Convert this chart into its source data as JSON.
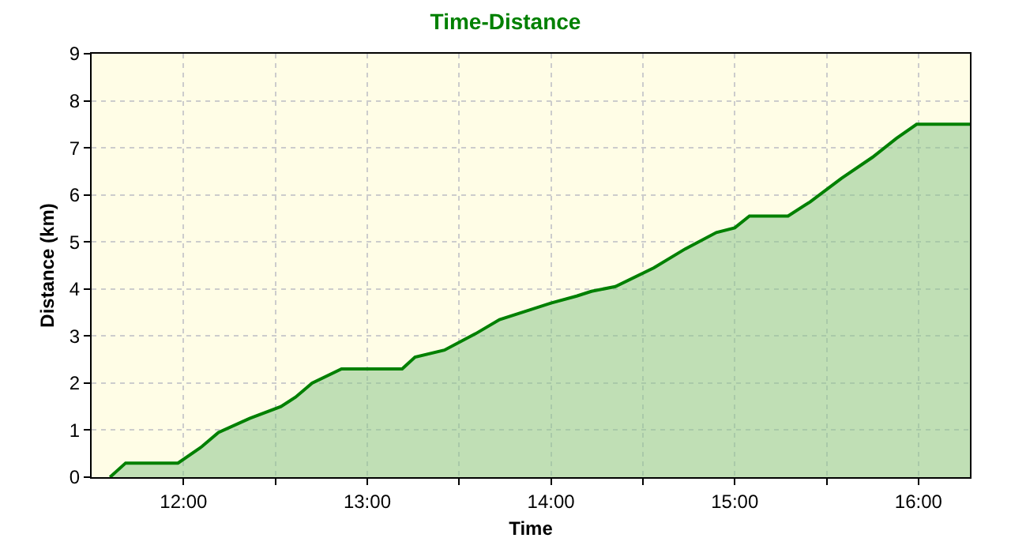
{
  "chart_data": {
    "type": "area",
    "title": "Time-Distance",
    "xlabel": "Time",
    "ylabel": "Distance (km)",
    "x": [
      11.6,
      11.685,
      11.97,
      12.1,
      12.19,
      12.36,
      12.53,
      12.61,
      12.7,
      12.86,
      13.19,
      13.26,
      13.42,
      13.59,
      13.72,
      13.88,
      14.0,
      14.14,
      14.22,
      14.35,
      14.56,
      14.73,
      14.9,
      15.0,
      15.08,
      15.29,
      15.41,
      15.58,
      15.75,
      15.88,
      15.99,
      16.28
    ],
    "series": [
      {
        "color": "#008000",
        "values": [
          0,
          0.3,
          0.3,
          0.65,
          0.95,
          1.25,
          1.5,
          1.7,
          2.0,
          2.3,
          2.3,
          2.55,
          2.7,
          3.05,
          3.35,
          3.55,
          3.7,
          3.85,
          3.95,
          4.05,
          4.45,
          4.85,
          5.2,
          5.3,
          5.55,
          5.55,
          5.85,
          6.35,
          6.8,
          7.2,
          7.5,
          7.5
        ]
      }
    ],
    "xlim": [
      11.5,
      16.28
    ],
    "xticks": [
      {
        "value": 12,
        "label": "12:00"
      },
      {
        "value": 12.5,
        "label": null
      },
      {
        "value": 13,
        "label": "13:00"
      },
      {
        "value": 13.5,
        "label": null
      },
      {
        "value": 14,
        "label": "14:00"
      },
      {
        "value": 14.5,
        "label": null
      },
      {
        "value": 15,
        "label": "15:00"
      },
      {
        "value": 15.5,
        "label": null
      },
      {
        "value": 16,
        "label": "16:00"
      }
    ],
    "ylim": [
      0,
      9
    ],
    "yticks": [
      0,
      1,
      2,
      3,
      4,
      5,
      6,
      7,
      8,
      9
    ],
    "grid": true
  }
}
